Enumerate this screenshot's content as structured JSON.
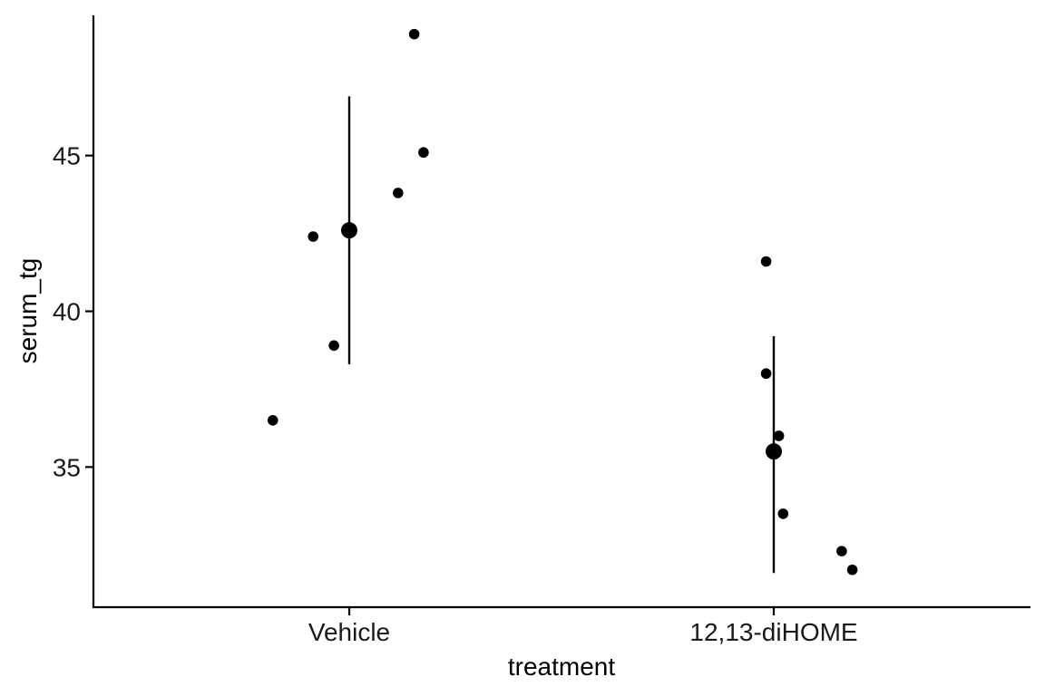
{
  "chart_data": {
    "type": "scatter",
    "xlabel": "treatment",
    "ylabel": "serum_tg",
    "categories": [
      "Vehicle",
      "12,13-diHOME"
    ],
    "ylim": [
      30.5,
      49.5
    ],
    "yticks": [
      35,
      40,
      45
    ],
    "grid": false,
    "points": [
      {
        "category": "Vehicle",
        "jitter": -0.18,
        "y": 36.5
      },
      {
        "category": "Vehicle",
        "jitter": -0.085,
        "y": 42.4
      },
      {
        "category": "Vehicle",
        "jitter": -0.036,
        "y": 38.9
      },
      {
        "category": "Vehicle",
        "jitter": 0.115,
        "y": 43.8
      },
      {
        "category": "Vehicle",
        "jitter": 0.153,
        "y": 48.9
      },
      {
        "category": "Vehicle",
        "jitter": 0.175,
        "y": 45.1
      },
      {
        "category": "12,13-diHOME",
        "jitter": -0.018,
        "y": 41.6
      },
      {
        "category": "12,13-diHOME",
        "jitter": -0.018,
        "y": 38.0
      },
      {
        "category": "12,13-diHOME",
        "jitter": 0.012,
        "y": 36.0
      },
      {
        "category": "12,13-diHOME",
        "jitter": 0.022,
        "y": 33.5
      },
      {
        "category": "12,13-diHOME",
        "jitter": 0.16,
        "y": 32.3
      },
      {
        "category": "12,13-diHOME",
        "jitter": 0.185,
        "y": 31.7
      }
    ],
    "summary": [
      {
        "category": "Vehicle",
        "mean": 42.6,
        "lower": 38.3,
        "upper": 46.9
      },
      {
        "category": "12,13-diHOME",
        "mean": 35.5,
        "lower": 31.6,
        "upper": 39.2
      }
    ],
    "colors": {
      "points": "#000000",
      "axes": "#000000"
    }
  }
}
